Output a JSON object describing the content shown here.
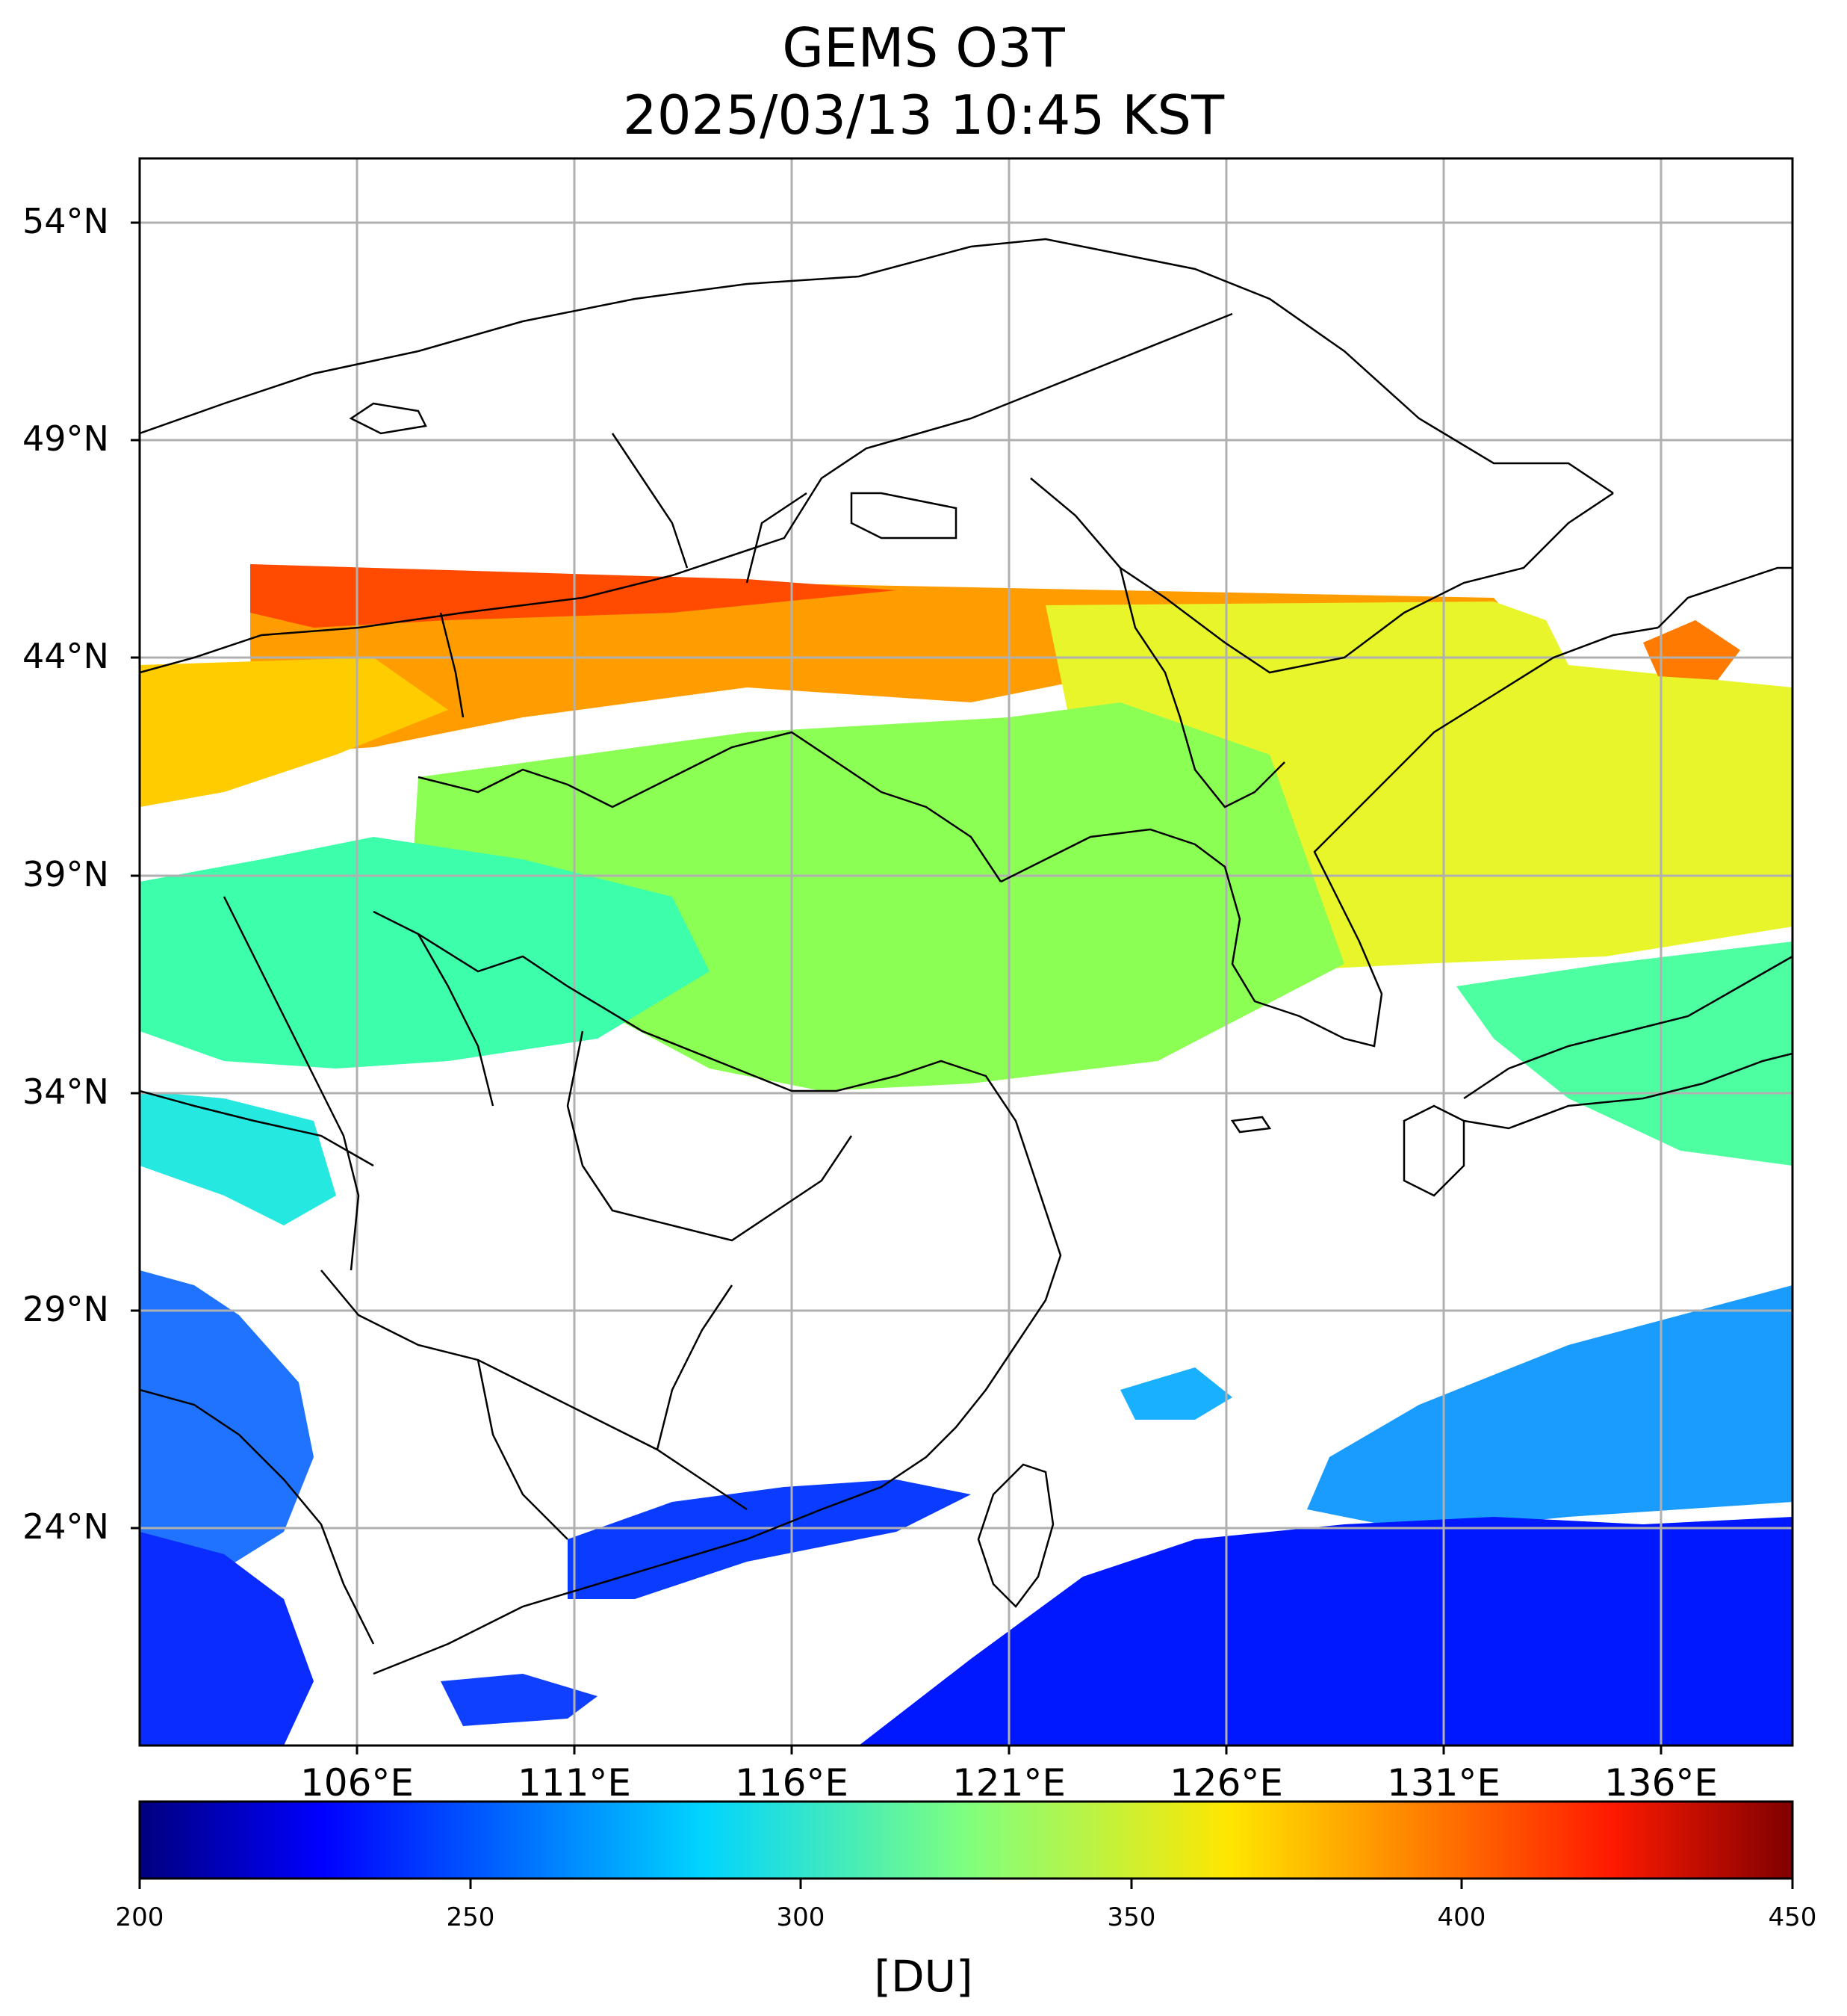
{
  "title": {
    "line1": "GEMS O3T",
    "line2": "2025/03/13 10:45 KST"
  },
  "map": {
    "lat_ticks": [
      "54°N",
      "49°N",
      "44°N",
      "39°N",
      "34°N",
      "29°N",
      "24°N"
    ],
    "lon_ticks": [
      "106°E",
      "111°E",
      "116°E",
      "121°E",
      "126°E",
      "131°E",
      "136°E"
    ],
    "lat_values": [
      54,
      49,
      44,
      39,
      34,
      29,
      24
    ],
    "lon_values": [
      106,
      111,
      116,
      121,
      126,
      131,
      136
    ],
    "lat_range": [
      19.5,
      55.5
    ],
    "lon_range": [
      101,
      139
    ],
    "grid": true,
    "grid_color": "#b0b0b0",
    "coastline_color": "#000000",
    "no_data_color": "#ffffff"
  },
  "colorbar": {
    "min": 200,
    "max": 450,
    "ticks": [
      "200",
      "250",
      "300",
      "350",
      "400",
      "450"
    ],
    "unit": "[DU]",
    "colormap": "jet",
    "colors": [
      "#00007f",
      "#0000ff",
      "#007fff",
      "#00e5ff",
      "#7fff7f",
      "#ffff00",
      "#ff7f00",
      "#ff1a00",
      "#7f0000"
    ]
  },
  "chart_data": {
    "type": "heatmap",
    "variable": "O3T",
    "unit": "[DU]",
    "value_range": [
      200,
      450
    ],
    "x_range": [
      101,
      139
    ],
    "y_range": [
      19.5,
      55.5
    ],
    "zonal_profile_estimate": [
      {
        "lat": 45.5,
        "value": 395
      },
      {
        "lat": 44,
        "value": 380
      },
      {
        "lat": 42,
        "value": 352
      },
      {
        "lat": 39,
        "value": 335
      },
      {
        "lat": 36,
        "value": 320
      },
      {
        "lat": 33,
        "value": 300
      },
      {
        "lat": 29,
        "value": 268
      },
      {
        "lat": 25,
        "value": 255
      },
      {
        "lat": 21,
        "value": 238
      }
    ]
  }
}
